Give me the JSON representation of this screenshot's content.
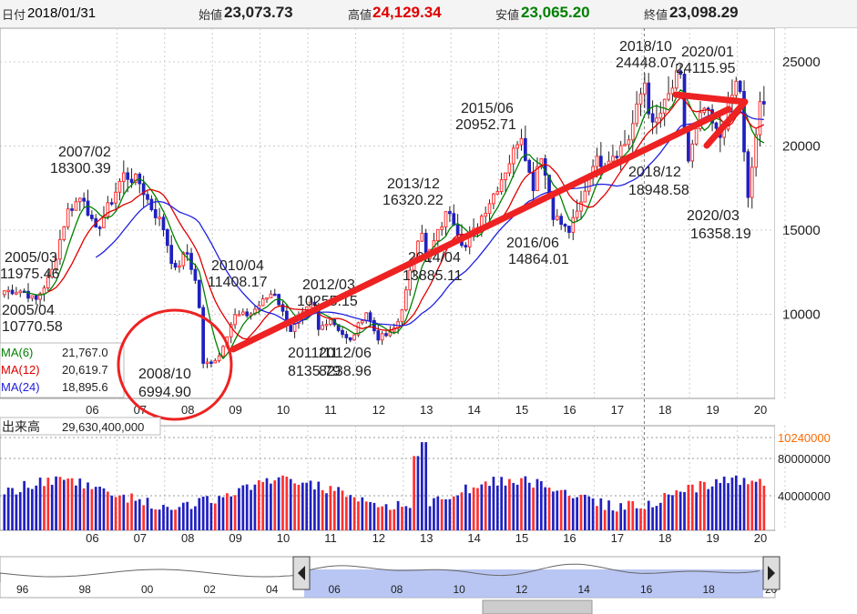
{
  "header": {
    "date_label": "日付",
    "date": "2018/01/31",
    "open_label": "始値",
    "open": "23,073.73",
    "high_label": "高値",
    "high": "24,129.34",
    "low_label": "安値",
    "low": "23,065.20",
    "close_label": "終値",
    "close": "23,098.29"
  },
  "colors": {
    "up": "#ff3030",
    "down": "#2020c0",
    "ma6": "#008000",
    "ma12": "#e00000",
    "ma24": "#2020e0",
    "volume_axis": "#ff6a00",
    "arrow": "#ee2222",
    "navigator_fill": "#a8b8f0"
  },
  "legend": [
    {
      "name": "MA(6)",
      "value": "21,767.0",
      "color": "#008000"
    },
    {
      "name": "MA(12)",
      "value": "20,619.7",
      "color": "#e00000"
    },
    {
      "name": "MA(24)",
      "value": "18,895.6",
      "color": "#2020e0"
    }
  ],
  "volume": {
    "label": "出来高",
    "value": "29,630,400,000"
  },
  "chart_data": [
    {
      "type": "candlestick",
      "x_tick_labels": [
        "06",
        "07",
        "08",
        "09",
        "10",
        "11",
        "12",
        "13",
        "14",
        "15",
        "16",
        "17",
        "18",
        "19",
        "20"
      ],
      "y_ticks": [
        10000,
        15000,
        20000,
        25000
      ],
      "y_tick_labels": [
        "10000",
        "15000",
        "20000",
        "25000"
      ],
      "ylim": [
        5000,
        27000
      ],
      "grid": true,
      "price_path": [
        [
          "2005/01",
          11400
        ],
        [
          "2005/04",
          10770
        ],
        [
          "2005/08",
          12400
        ],
        [
          "2005/12",
          16100
        ],
        [
          "2006/04",
          17100
        ],
        [
          "2006/07",
          14800
        ],
        [
          "2006/12",
          17200
        ],
        [
          "2007/02",
          18300
        ],
        [
          "2007/06",
          17900
        ],
        [
          "2007/09",
          16400
        ],
        [
          "2007/12",
          15300
        ],
        [
          "2008/03",
          12500
        ],
        [
          "2008/06",
          13800
        ],
        [
          "2008/09",
          11300
        ],
        [
          "2008/10",
          6995
        ],
        [
          "2009/02",
          7400
        ],
        [
          "2009/03",
          8100
        ],
        [
          "2009/06",
          9900
        ],
        [
          "2009/10",
          10000
        ],
        [
          "2009/12",
          10500
        ],
        [
          "2010/04",
          11408
        ],
        [
          "2010/08",
          9000
        ],
        [
          "2010/12",
          10200
        ],
        [
          "2011/02",
          10800
        ],
        [
          "2011/03",
          9000
        ],
        [
          "2011/06",
          9800
        ],
        [
          "2011/11",
          8300
        ],
        [
          "2012/02",
          9700
        ],
        [
          "2012/03",
          10255
        ],
        [
          "2012/06",
          8600
        ],
        [
          "2012/09",
          8800
        ],
        [
          "2012/11",
          9400
        ],
        [
          "2013/01",
          11100
        ],
        [
          "2013/05",
          15500
        ],
        [
          "2013/06",
          13100
        ],
        [
          "2013/12",
          16320
        ],
        [
          "2014/04",
          13885
        ],
        [
          "2014/09",
          16200
        ],
        [
          "2014/12",
          17500
        ],
        [
          "2015/04",
          19500
        ],
        [
          "2015/06",
          20953
        ],
        [
          "2015/09",
          17400
        ],
        [
          "2015/11",
          19800
        ],
        [
          "2016/02",
          16000
        ],
        [
          "2016/06",
          14864
        ],
        [
          "2016/09",
          16400
        ],
        [
          "2016/12",
          19100
        ],
        [
          "2017/03",
          19100
        ],
        [
          "2017/09",
          20300
        ],
        [
          "2017/12",
          22800
        ],
        [
          "2018/01",
          24129
        ],
        [
          "2018/03",
          21000
        ],
        [
          "2018/06",
          22300
        ],
        [
          "2018/10",
          24448
        ],
        [
          "2018/12",
          18949
        ],
        [
          "2019/04",
          22300
        ],
        [
          "2019/08",
          20400
        ],
        [
          "2019/12",
          23600
        ],
        [
          "2020/01",
          24116
        ],
        [
          "2020/03",
          16358
        ],
        [
          "2020/06",
          22300
        ]
      ],
      "annotations": [
        {
          "date": "2007/02",
          "value": "18300.39"
        },
        {
          "date": "2005/03",
          "value": "11975.46"
        },
        {
          "date": "2005/04",
          "value": "10770.58"
        },
        {
          "date": "2008/10",
          "value": "6994.90"
        },
        {
          "date": "2010/04",
          "value": "11408.17"
        },
        {
          "date": "2011/11",
          "value": "8135.79"
        },
        {
          "date": "2012/03",
          "value": "10255.15"
        },
        {
          "date": "2012/06",
          "value": "8238.96"
        },
        {
          "date": "2013/12",
          "value": "16320.22"
        },
        {
          "date": "2014/04",
          "value": "13885.11"
        },
        {
          "date": "2015/06",
          "value": "20952.71"
        },
        {
          "date": "2016/06",
          "value": "14864.01"
        },
        {
          "date": "2018/10",
          "value": "24448.07"
        },
        {
          "date": "2018/12",
          "value": "18948.58"
        },
        {
          "date": "2020/01",
          "value": "24115.95"
        },
        {
          "date": "2020/03",
          "value": "16358.19"
        }
      ]
    },
    {
      "type": "bar",
      "x_tick_labels": [
        "06",
        "07",
        "08",
        "09",
        "10",
        "11",
        "12",
        "13",
        "14",
        "15",
        "16",
        "17",
        "18",
        "19",
        "20"
      ],
      "y_tick_labels": [
        "40000000",
        "80000000",
        "10240000"
      ],
      "grid": true
    }
  ],
  "navigator": {
    "year_labels": [
      "96",
      "98",
      "00",
      "02",
      "04",
      "06",
      "08",
      "10",
      "12",
      "14",
      "16",
      "18",
      "20"
    ]
  }
}
